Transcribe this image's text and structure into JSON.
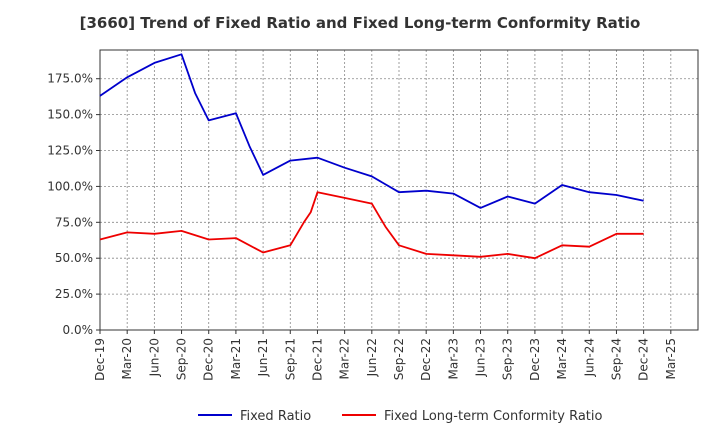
{
  "chart_data": {
    "type": "line",
    "title": "[3660]  Trend of Fixed Ratio and Fixed Long-term Conformity Ratio",
    "xlabel": "",
    "ylabel": "",
    "ylim": [
      0,
      195
    ],
    "y_ticks": [
      0,
      25,
      50,
      75,
      100,
      125,
      150,
      175
    ],
    "y_tick_labels": [
      "0.0%",
      "25.0%",
      "50.0%",
      "75.0%",
      "100.0%",
      "125.0%",
      "150.0%",
      "175.0%"
    ],
    "x_tick_labels": [
      "Dec-19",
      "Mar-20",
      "Jun-20",
      "Sep-20",
      "Dec-20",
      "Mar-21",
      "Jun-21",
      "Sep-21",
      "Dec-21",
      "Mar-22",
      "Jun-22",
      "Sep-22",
      "Dec-22",
      "Mar-23",
      "Jun-23",
      "Sep-23",
      "Dec-23",
      "Mar-24",
      "Jun-24",
      "Sep-24",
      "Dec-24",
      "Mar-25"
    ],
    "grid": true,
    "legend_position": "bottom",
    "series": [
      {
        "name": "Fixed Ratio",
        "color": "#0000cc",
        "points": [
          [
            0,
            163
          ],
          [
            1,
            176
          ],
          [
            2,
            186
          ],
          [
            3,
            192
          ],
          [
            3.5,
            165
          ],
          [
            4,
            146
          ],
          [
            5,
            151
          ],
          [
            5.5,
            128
          ],
          [
            6,
            108
          ],
          [
            7,
            118
          ],
          [
            8,
            120
          ],
          [
            9,
            113
          ],
          [
            10,
            107
          ],
          [
            11,
            96
          ],
          [
            12,
            97
          ],
          [
            13,
            95
          ],
          [
            14,
            85
          ],
          [
            15,
            93
          ],
          [
            16,
            88
          ],
          [
            17,
            101
          ],
          [
            18,
            96
          ],
          [
            19,
            94
          ],
          [
            20,
            90
          ]
        ]
      },
      {
        "name": "Fixed Long-term Conformity Ratio",
        "color": "#ee0000",
        "points": [
          [
            0,
            63
          ],
          [
            1,
            68
          ],
          [
            2,
            67
          ],
          [
            3,
            69
          ],
          [
            4,
            63
          ],
          [
            5,
            64
          ],
          [
            6,
            54
          ],
          [
            7,
            59
          ],
          [
            7.5,
            75
          ],
          [
            7.75,
            82
          ],
          [
            8,
            96
          ],
          [
            9,
            92
          ],
          [
            10,
            88
          ],
          [
            10.5,
            72
          ],
          [
            11,
            59
          ],
          [
            12,
            53
          ],
          [
            13,
            52
          ],
          [
            14,
            51
          ],
          [
            15,
            53
          ],
          [
            16,
            50
          ],
          [
            17,
            59
          ],
          [
            18,
            58
          ],
          [
            19,
            67
          ],
          [
            20,
            67
          ]
        ]
      }
    ]
  }
}
